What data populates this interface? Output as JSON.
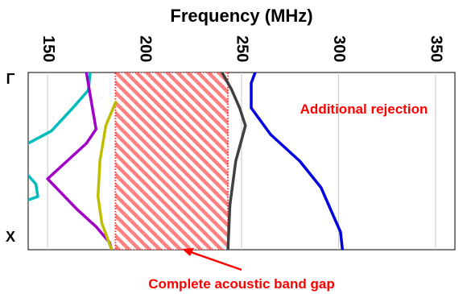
{
  "chart_data": {
    "type": "line",
    "title": "",
    "xlabel": "Frequency (MHz)",
    "ylabel": "",
    "xlim": [
      140,
      360
    ],
    "ylim": [
      0,
      1
    ],
    "x_ticks": [
      "150",
      "200",
      "250",
      "300",
      "350"
    ],
    "y_ticks": [
      "Γ",
      "X"
    ],
    "grid": true,
    "legend": "none",
    "band_gap": {
      "x_start": 185,
      "x_end": 243,
      "label": "Complete acoustic band gap",
      "color": "#ff5050"
    },
    "annotations": [
      {
        "text": "Additional rejection",
        "color": "#ff0000"
      }
    ],
    "series": [
      {
        "color": "#00bcbc",
        "points": [
          [
            172,
            0
          ],
          [
            171,
            0.1
          ],
          [
            163,
            0.2
          ],
          [
            152,
            0.33
          ],
          [
            140,
            0.4
          ]
        ]
      },
      {
        "color": "#00bcbc",
        "points": [
          [
            140,
            0.58
          ],
          [
            144,
            0.63
          ],
          [
            145,
            0.7
          ],
          [
            140,
            0.72
          ]
        ]
      },
      {
        "color": "#a000c8",
        "points": [
          [
            170,
            0
          ],
          [
            172,
            0.13
          ],
          [
            175,
            0.32
          ],
          [
            170,
            0.4
          ],
          [
            150,
            0.6
          ],
          [
            165,
            0.77
          ],
          [
            175,
            0.87
          ],
          [
            182,
            0.96
          ],
          [
            183,
            1
          ]
        ]
      },
      {
        "color": "#bebe00",
        "points": [
          [
            185,
            0.17
          ],
          [
            180,
            0.3
          ],
          [
            177,
            0.5
          ],
          [
            176,
            0.7
          ],
          [
            178,
            0.85
          ],
          [
            183,
            1
          ]
        ]
      },
      {
        "color": "#404040",
        "points": [
          [
            240,
            0
          ],
          [
            245,
            0.1
          ],
          [
            249,
            0.2
          ],
          [
            252,
            0.3
          ],
          [
            247,
            0.5
          ],
          [
            244,
            0.75
          ],
          [
            243,
            1
          ]
        ]
      },
      {
        "color": "#0000e0",
        "points": [
          [
            257,
            0
          ],
          [
            255,
            0.06
          ],
          [
            255,
            0.2
          ],
          [
            265,
            0.35
          ],
          [
            280,
            0.5
          ],
          [
            291,
            0.65
          ],
          [
            297,
            0.8
          ],
          [
            301,
            0.9
          ],
          [
            302,
            1
          ]
        ]
      }
    ]
  }
}
